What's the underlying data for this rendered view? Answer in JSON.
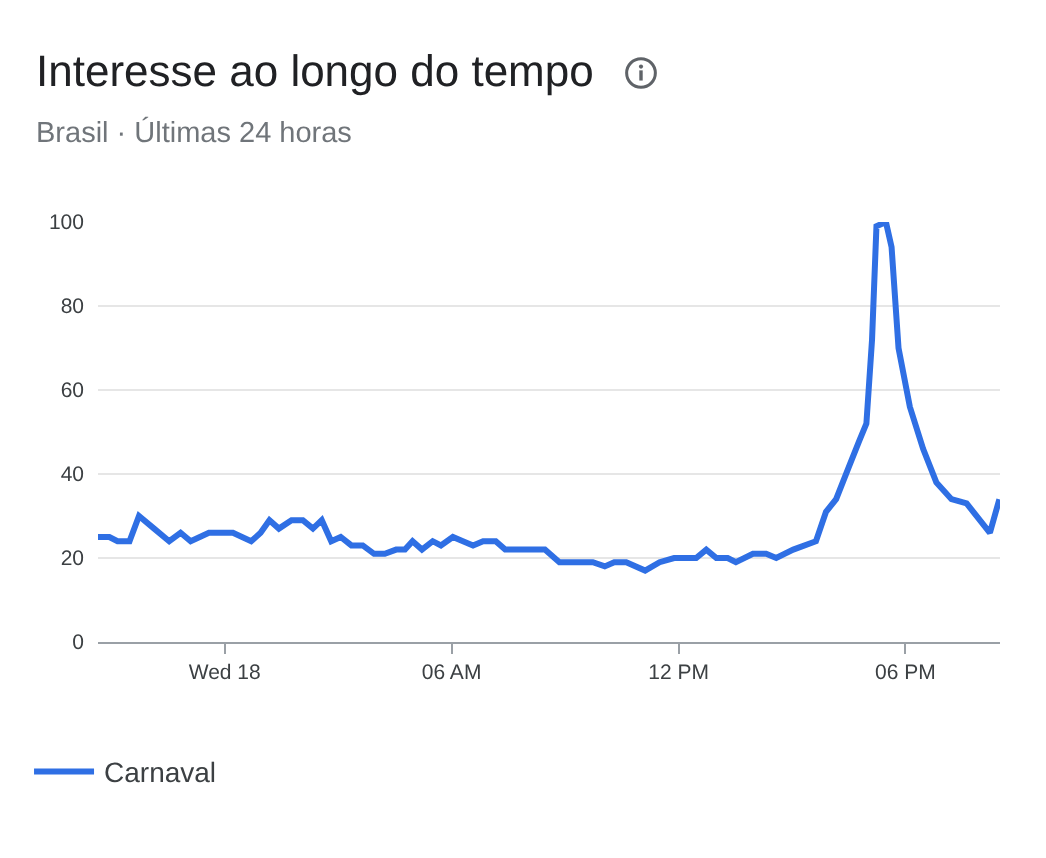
{
  "chart_data": {
    "type": "line",
    "title": "Interesse ao longo do tempo",
    "subtitle": "Brasil · Últimas 24 horas",
    "x": [
      "--02-17T20:39",
      "--02-17T20:57",
      "--02-17T21:10",
      "--02-17T21:29",
      "--02-17T21:44",
      "--02-17T22:08",
      "--02-17T22:32",
      "--02-17T22:50",
      "--02-17T23:06",
      "--02-17T23:35",
      "--02-18T00:13",
      "--02-18T00:42",
      "--02-18T00:57",
      "--02-18T01:11",
      "--02-18T01:26",
      "--02-18T01:46",
      "--02-18T02:04",
      "--02-18T02:20",
      "--02-18T02:34",
      "--02-18T02:49",
      "--02-18T03:04",
      "--02-18T03:21",
      "--02-18T03:39",
      "--02-18T03:57",
      "--02-18T04:14",
      "--02-18T04:32",
      "--02-18T04:46",
      "--02-18T04:58",
      "--02-18T05:13",
      "--02-18T05:30",
      "--02-18T05:43",
      "--02-18T06:02",
      "--02-18T06:18",
      "--02-18T06:34",
      "--02-18T06:50",
      "--02-18T07:10",
      "--02-18T07:25",
      "--02-18T08:28",
      "--02-18T08:51",
      "--02-18T09:44",
      "--02-18T10:03",
      "--02-18T10:18",
      "--02-18T10:37",
      "--02-18T11:07",
      "--02-18T11:30",
      "--02-18T11:53",
      "--02-18T12:28",
      "--02-18T12:44",
      "--02-18T13:00",
      "--02-18T13:18",
      "--02-18T13:31",
      "--02-18T13:58",
      "--02-18T14:19",
      "--02-18T14:35",
      "--02-18T15:02",
      "--02-18T15:38",
      "--02-18T15:54",
      "--02-18T16:10",
      "--02-18T16:31",
      "--02-18T16:47",
      "--02-18T16:58",
      "--02-18T17:07",
      "--02-18T17:14",
      "--02-18T17:29",
      "--02-18T17:38",
      "--02-18T17:49",
      "--02-18T18:07",
      "--02-18T18:28",
      "--02-18T18:49",
      "--02-18T19:13",
      "--02-18T19:37",
      "--02-18T20:14",
      "--02-18T20:29"
    ],
    "series": [
      {
        "name": "Carnaval",
        "color": "#2f6fe4",
        "values": [
          25,
          25,
          24,
          24,
          30,
          27,
          24,
          26,
          24,
          26,
          26,
          24,
          26,
          29,
          27,
          29,
          29,
          27,
          29,
          24,
          25,
          23,
          23,
          21,
          21,
          22,
          22,
          24,
          22,
          24,
          23,
          25,
          24,
          23,
          24,
          24,
          22,
          22,
          19,
          19,
          18,
          19,
          19,
          17,
          19,
          20,
          20,
          22,
          20,
          20,
          19,
          21,
          21,
          20,
          22,
          24,
          31,
          34,
          42,
          48,
          52,
          72,
          99,
          100,
          94,
          70,
          56,
          46,
          38,
          34,
          33,
          26,
          34
        ]
      }
    ],
    "xlim": [
      "--02-17T20:39",
      "--02-18T20:30"
    ],
    "xticks": [
      {
        "value": "--02-18T00:00",
        "label": "Wed 18"
      },
      {
        "value": "--02-18T06:00",
        "label": "06 AM"
      },
      {
        "value": "--02-18T12:00",
        "label": "12 PM"
      },
      {
        "value": "--02-18T18:00",
        "label": "06 PM"
      }
    ],
    "ylim": [
      0,
      100
    ],
    "yticks": [
      0,
      20,
      40,
      60,
      80,
      100
    ],
    "grid": "y",
    "legend": "bottom left"
  }
}
